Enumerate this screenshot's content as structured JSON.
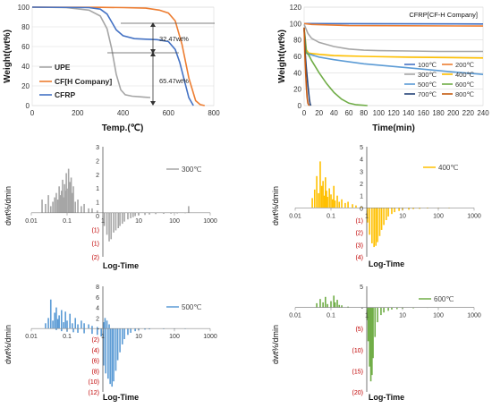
{
  "chart_data": [
    {
      "type": "line",
      "panel": "top-left",
      "xlabel": "Temp.(℃)",
      "ylabel": "Weight(wt%)",
      "xlim": [
        0,
        800
      ],
      "ylim": [
        0,
        100
      ],
      "xticks": [
        0,
        200,
        400,
        600,
        800
      ],
      "yticks": [
        0,
        20,
        40,
        60,
        80,
        100
      ],
      "grid": "horizontal",
      "legend_position": "bottom-left",
      "series": [
        {
          "name": "UPE",
          "color": "#a6a6a6",
          "x": [
            0,
            150,
            250,
            300,
            330,
            350,
            370,
            390,
            410,
            440,
            470,
            500,
            520
          ],
          "y": [
            100,
            99.5,
            97,
            91,
            78,
            58,
            32,
            16,
            11,
            9.5,
            9,
            8.5,
            8.2
          ]
        },
        {
          "name": "CF[H Company]",
          "color": "#ed7d31",
          "x": [
            0,
            300,
            400,
            500,
            560,
            600,
            630,
            660,
            690,
            720,
            740,
            760
          ],
          "y": [
            100,
            99.8,
            99.5,
            99,
            97,
            94,
            86,
            62,
            28,
            5,
            1,
            0
          ]
        },
        {
          "name": "CFRP",
          "color": "#4472c4",
          "x": [
            0,
            250,
            300,
            330,
            350,
            370,
            400,
            450,
            500,
            550,
            600,
            630,
            650,
            670,
            690,
            710
          ],
          "y": [
            100,
            99.5,
            98,
            93,
            85,
            77,
            71,
            68,
            67.5,
            67,
            65,
            57,
            44,
            26,
            8,
            0
          ]
        }
      ],
      "annotations": [
        "32.47wt%",
        "65.47wt%"
      ]
    },
    {
      "type": "line",
      "panel": "top-right",
      "title": "CFRP[CF-H Company]",
      "xlabel": "Time(min)",
      "ylabel": "Weight(wt%)",
      "xlim": [
        0,
        240
      ],
      "ylim": [
        0,
        120
      ],
      "xticks": [
        0,
        20,
        40,
        60,
        80,
        100,
        120,
        140,
        160,
        180,
        200,
        220,
        240
      ],
      "yticks": [
        0,
        20,
        40,
        60,
        80,
        100,
        120
      ],
      "grid": "horizontal",
      "legend_position": "right",
      "series": [
        {
          "name": "100℃",
          "color": "#4472c4",
          "x": [
            0,
            240
          ],
          "y": [
            100,
            99.5
          ]
        },
        {
          "name": "200℃",
          "color": "#ed7d31",
          "x": [
            0,
            10,
            60,
            240
          ],
          "y": [
            100,
            99,
            97.5,
            97
          ]
        },
        {
          "name": "300℃",
          "color": "#a6a6a6",
          "x": [
            0,
            5,
            10,
            20,
            40,
            60,
            80,
            100,
            140,
            180,
            240
          ],
          "y": [
            99,
            88,
            82,
            77,
            72,
            69,
            67.5,
            67,
            66.5,
            66,
            66
          ]
        },
        {
          "name": "400℃",
          "color": "#ffc000",
          "x": [
            0,
            3,
            6,
            10,
            20,
            40,
            80,
            140,
            240
          ],
          "y": [
            95,
            68,
            64,
            63.5,
            62.5,
            61,
            60,
            59,
            58
          ]
        },
        {
          "name": "500℃",
          "color": "#5b9bd5",
          "x": [
            0,
            3,
            6,
            10,
            20,
            40,
            80,
            140,
            200,
            240
          ],
          "y": [
            93,
            65,
            63,
            62,
            59,
            56,
            51,
            46,
            41,
            38
          ]
        },
        {
          "name": "600℃",
          "color": "#70ad47",
          "x": [
            0,
            3,
            6,
            10,
            20,
            30,
            40,
            50,
            60,
            70,
            80,
            85
          ],
          "y": [
            92,
            64,
            62,
            55,
            40,
            27,
            16,
            8,
            3,
            1,
            0.3,
            0
          ]
        },
        {
          "name": "700℃",
          "color": "#264478",
          "x": [
            0,
            1.5,
            3,
            5,
            7,
            8,
            9
          ],
          "y": [
            95,
            62,
            45,
            25,
            8,
            2,
            0
          ]
        },
        {
          "name": "800℃",
          "color": "#c55a11",
          "x": [
            0,
            1,
            2,
            3,
            4,
            5,
            6,
            7
          ],
          "y": [
            95,
            62,
            40,
            22,
            10,
            3,
            1,
            0
          ]
        }
      ]
    },
    {
      "type": "bar",
      "panel": "mid-left",
      "series_name": "300℃",
      "color": "#a6a6a6",
      "xlabel": "Log-Time",
      "ylabel": "dwt%/dmin",
      "xscale": "log",
      "xlim": [
        0.01,
        1000
      ],
      "ylim": [
        -2,
        3
      ],
      "xtick_labels": [
        "0.01",
        "0.1",
        "1",
        "10",
        "100",
        "1000"
      ],
      "ytick_labels": [
        "3",
        "2",
        "2",
        "1",
        "1",
        "0",
        "(1)",
        "(1)",
        "(2)"
      ],
      "pos_x": [
        0.02,
        0.025,
        0.03,
        0.035,
        0.04,
        0.045,
        0.05,
        0.055,
        0.06,
        0.065,
        0.07,
        0.075,
        0.08,
        0.085,
        0.09,
        0.095,
        0.1,
        0.11,
        0.12,
        0.13,
        0.14,
        0.15,
        0.17,
        0.2,
        0.25,
        0.3,
        0.4,
        0.5,
        0.7
      ],
      "pos_y": [
        0.6,
        0.4,
        0.8,
        0.3,
        0.5,
        0.7,
        0.9,
        0.6,
        1.2,
        0.8,
        1.0,
        1.5,
        0.7,
        1.3,
        1.0,
        1.8,
        1.1,
        2.0,
        1.4,
        1.6,
        0.9,
        1.2,
        0.5,
        0.6,
        0.3,
        0.4,
        0.2,
        0.2,
        0.1
      ],
      "neg_x": [
        1.1,
        1.3,
        1.5,
        1.7,
        2,
        2.3,
        2.7,
        3,
        3.5,
        4,
        5,
        6,
        7,
        8,
        10,
        15,
        20,
        30,
        50,
        80,
        120,
        200
      ],
      "neg_y": [
        -0.6,
        -1.0,
        -1.3,
        -1.2,
        -0.9,
        -0.8,
        -0.7,
        -0.6,
        -0.5,
        -0.4,
        -0.3,
        -0.25,
        -0.2,
        -0.15,
        -0.12,
        -0.1,
        -0.08,
        -0.06,
        -0.05,
        -0.04,
        -0.03,
        -0.02
      ],
      "spike": {
        "x": 250,
        "y": 0.3
      }
    },
    {
      "type": "bar",
      "panel": "mid-right",
      "series_name": "400℃",
      "color": "#ffc000",
      "xlabel": "Log-Time",
      "ylabel": "dwt%/dmin",
      "xscale": "log",
      "xlim": [
        0.01,
        1000
      ],
      "ylim": [
        -4,
        5
      ],
      "xtick_labels": [
        "0.01",
        "0.1",
        "1",
        "10",
        "100",
        "1000"
      ],
      "ytick_labels": [
        "5",
        "4",
        "3",
        "2",
        "1",
        "0",
        "(1)",
        "(2)",
        "(3)",
        "(4)"
      ],
      "pos_x": [
        0.03,
        0.035,
        0.04,
        0.045,
        0.05,
        0.055,
        0.06,
        0.065,
        0.07,
        0.075,
        0.08,
        0.09,
        0.1,
        0.11,
        0.12,
        0.13,
        0.15,
        0.17,
        0.2,
        0.25,
        0.3,
        0.4,
        0.5,
        0.7
      ],
      "pos_y": [
        0.8,
        1.5,
        2.6,
        1.2,
        3.8,
        1.8,
        2.2,
        1.0,
        2.5,
        1.4,
        0.9,
        1.6,
        1.1,
        0.7,
        1.8,
        0.6,
        1.0,
        0.5,
        0.7,
        0.4,
        0.5,
        0.3,
        0.2,
        0.1
      ],
      "neg_x": [
        1.05,
        1.2,
        1.4,
        1.6,
        1.8,
        2,
        2.3,
        2.6,
        3,
        3.5,
        4,
        5,
        6,
        8,
        10,
        15,
        20,
        30,
        50,
        100,
        200
      ],
      "neg_y": [
        -1.2,
        -2.2,
        -2.9,
        -3.2,
        -3.1,
        -2.8,
        -2.3,
        -1.8,
        -1.4,
        -1.0,
        -0.7,
        -0.5,
        -0.35,
        -0.25,
        -0.2,
        -0.15,
        -0.1,
        -0.08,
        -0.05,
        -0.03,
        -0.02
      ]
    },
    {
      "type": "bar",
      "panel": "bottom-left",
      "series_name": "500℃",
      "color": "#5b9bd5",
      "xlabel": "Log-Time",
      "ylabel": "dwt%/dmin",
      "xscale": "log",
      "xlim": [
        0.01,
        1000
      ],
      "ylim": [
        -12,
        8
      ],
      "xtick_labels": [
        "0.01",
        "0.1",
        "1",
        "10",
        "100",
        "1000"
      ],
      "ytick_labels": [
        "8",
        "6",
        "4",
        "2",
        "-",
        "(2)",
        "(4)",
        "(6)",
        "(8)",
        "(10)",
        "(12)"
      ],
      "pos_x": [
        0.025,
        0.03,
        0.035,
        0.04,
        0.045,
        0.05,
        0.055,
        0.06,
        0.07,
        0.08,
        0.09,
        0.1,
        0.12,
        0.14,
        0.17,
        0.2,
        0.25,
        0.3,
        0.4,
        0.5,
        0.7
      ],
      "pos_y": [
        1.0,
        2.0,
        5.5,
        1.5,
        3.0,
        4.0,
        1.8,
        2.5,
        3.5,
        1.2,
        3.2,
        1.5,
        2.8,
        1.0,
        2.0,
        0.8,
        1.5,
        1.0,
        0.8,
        0.5,
        0.3
      ],
      "neg_x": [
        0.05,
        0.07,
        0.1,
        0.15,
        0.2,
        0.3,
        0.5,
        0.7,
        0.9,
        1.05,
        1.2,
        1.4,
        1.6,
        1.8,
        2,
        2.3,
        2.6,
        3,
        3.5,
        4,
        5,
        6,
        8,
        10,
        15,
        20,
        50,
        100,
        200
      ],
      "neg_y": [
        -0.3,
        -0.5,
        -0.6,
        -0.7,
        -0.8,
        -0.9,
        -1.0,
        -1.2,
        -1.5,
        -7.0,
        -8.5,
        -9.5,
        -10.5,
        -11.0,
        -10.0,
        -8.0,
        -6.0,
        -4.5,
        -3.0,
        -2.0,
        -1.2,
        -0.8,
        -0.5,
        -0.3,
        -0.2,
        -0.15,
        -0.1,
        -0.05,
        -0.03
      ],
      "extra_pos": {
        "x": [
          1.05,
          1.15,
          1.3,
          1.5
        ],
        "y": [
          1.2,
          2.0,
          1.5,
          0.8
        ]
      }
    },
    {
      "type": "bar",
      "panel": "bottom-right",
      "series_name": "600℃",
      "color": "#70ad47",
      "xlabel": "Log-Time",
      "ylabel": "dwt%/dmin",
      "xscale": "log",
      "xlim": [
        0.01,
        1000
      ],
      "ylim": [
        -20,
        5
      ],
      "xtick_labels": [
        "0.01",
        "0.1",
        "1",
        "10",
        "100",
        "1000"
      ],
      "ytick_labels": [
        "5",
        "-",
        "(5)",
        "(10)",
        "(15)",
        "(20)"
      ],
      "pos_x": [
        0.04,
        0.05,
        0.06,
        0.07,
        0.08,
        0.1,
        0.12,
        0.13,
        0.15,
        0.17,
        0.2,
        0.3
      ],
      "pos_y": [
        1.0,
        2.0,
        1.2,
        2.5,
        0.8,
        1.5,
        2.8,
        1.2,
        1.8,
        0.6,
        0.5,
        0.2
      ],
      "neg_x": [
        1.02,
        1.1,
        1.2,
        1.3,
        1.4,
        1.5,
        1.7,
        2,
        2.5,
        3,
        4,
        5,
        7,
        10,
        20,
        50,
        100
      ],
      "neg_y": [
        -3.0,
        -8.0,
        -14.0,
        -17.5,
        -16.0,
        -12.0,
        -7.0,
        -3.5,
        -1.8,
        -1.2,
        -0.8,
        -0.5,
        -0.4,
        -0.3,
        -0.2,
        -0.1,
        -0.05
      ]
    }
  ]
}
